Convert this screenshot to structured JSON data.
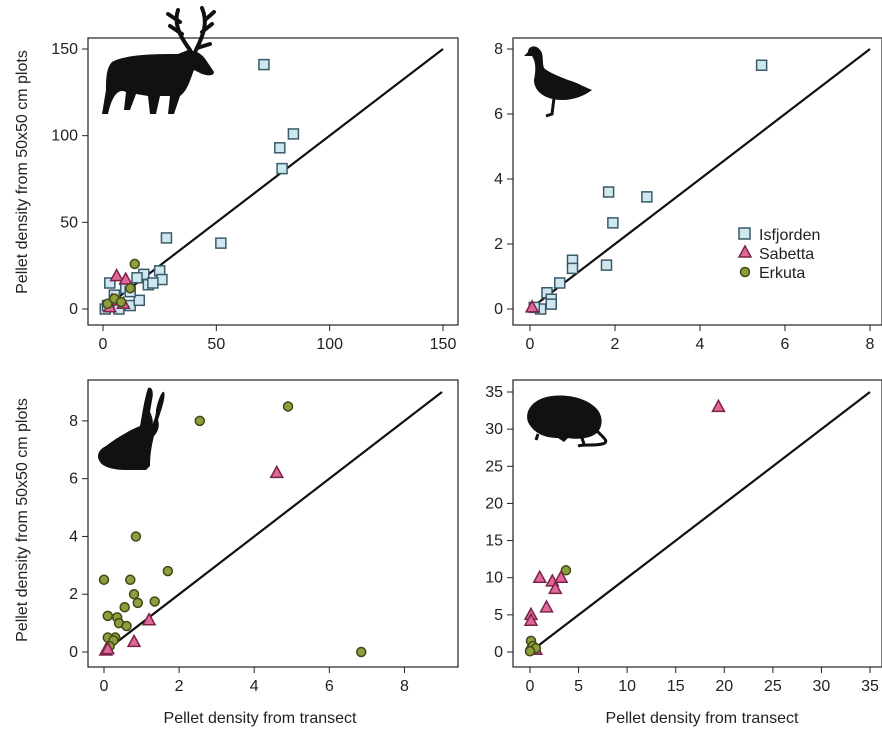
{
  "figure": {
    "ylabel": "Pellet density from 50x50 cm plots",
    "xlabel": "Pellet density from transect"
  },
  "legend": [
    {
      "label": "Isfjorden",
      "shape": "square",
      "fill": "#cfe7ee",
      "stroke": "#3a5a6a"
    },
    {
      "label": "Sabetta",
      "shape": "triangle",
      "fill": "#e0679a",
      "stroke": "#7a2448"
    },
    {
      "label": "Erkuta",
      "shape": "circle",
      "fill": "#8f9d3f",
      "stroke": "#3f4a17"
    }
  ],
  "colors": {
    "Isfjorden": {
      "fill": "#cfe7ee",
      "stroke": "#3a5a6a"
    },
    "Sabetta": {
      "fill": "#e0679a",
      "stroke": "#7a2448"
    },
    "Erkuta": {
      "fill": "#8f9d3f",
      "stroke": "#3f4a17"
    },
    "line": "#111111",
    "silhouette": "#111111"
  },
  "chart_data": [
    {
      "type": "scatter",
      "panel": "top-left",
      "icon": "reindeer-icon",
      "xlim": [
        0,
        150
      ],
      "ylim": [
        0,
        150
      ],
      "xticks": [
        0,
        50,
        100,
        150
      ],
      "yticks": [
        0,
        50,
        100,
        150
      ],
      "reference_line": [
        [
          0,
          0
        ],
        [
          150,
          150
        ]
      ],
      "series": [
        {
          "name": "Isfjorden",
          "points": [
            [
              71,
              141
            ],
            [
              84,
              101
            ],
            [
              78,
              93
            ],
            [
              79,
              81
            ],
            [
              28,
              41
            ],
            [
              52,
              38
            ],
            [
              1,
              0
            ],
            [
              2,
              2
            ],
            [
              3,
              15
            ],
            [
              7,
              0
            ],
            [
              12,
              2
            ],
            [
              5,
              8
            ],
            [
              10,
              12
            ],
            [
              16,
              5
            ],
            [
              18,
              20
            ],
            [
              20,
              14
            ],
            [
              25,
              22
            ],
            [
              26,
              17
            ],
            [
              15,
              18
            ],
            [
              22,
              15
            ],
            [
              12,
              10
            ]
          ]
        },
        {
          "name": "Sabetta",
          "points": [
            [
              6,
              19
            ],
            [
              10,
              17
            ],
            [
              4,
              5
            ],
            [
              9,
              3
            ],
            [
              3,
              1
            ]
          ]
        },
        {
          "name": "Erkuta",
          "points": [
            [
              14,
              26
            ],
            [
              2,
              3
            ],
            [
              5,
              6
            ],
            [
              8,
              4
            ],
            [
              12,
              12
            ]
          ]
        }
      ]
    },
    {
      "type": "scatter",
      "panel": "top-right",
      "icon": "goose-icon",
      "xlim": [
        0,
        8
      ],
      "ylim": [
        0,
        8
      ],
      "xticks": [
        0,
        2,
        4,
        6,
        8
      ],
      "yticks": [
        0,
        2,
        4,
        6,
        8
      ],
      "reference_line": [
        [
          0,
          0
        ],
        [
          8,
          8
        ]
      ],
      "series": [
        {
          "name": "Isfjorden",
          "points": [
            [
              5.45,
              7.5
            ],
            [
              1.85,
              3.6
            ],
            [
              2.75,
              3.45
            ],
            [
              1.95,
              2.65
            ],
            [
              1.0,
              1.5
            ],
            [
              1.0,
              1.25
            ],
            [
              1.8,
              1.35
            ],
            [
              0.7,
              0.8
            ],
            [
              0.4,
              0.5
            ],
            [
              0.5,
              0.3
            ],
            [
              0.5,
              0.15
            ],
            [
              0.25,
              0.0
            ],
            [
              0.1,
              0.05
            ]
          ]
        },
        {
          "name": "Sabetta",
          "points": [
            [
              0.05,
              0.05
            ]
          ]
        }
      ]
    },
    {
      "type": "scatter",
      "panel": "bottom-left",
      "icon": "hare-icon",
      "xlim": [
        0,
        9
      ],
      "ylim": [
        0,
        9
      ],
      "xticks": [
        0,
        2,
        4,
        6,
        8
      ],
      "yticks": [
        0,
        2,
        4,
        6,
        8
      ],
      "reference_line": [
        [
          0,
          0
        ],
        [
          9,
          9
        ]
      ],
      "series": [
        {
          "name": "Erkuta",
          "points": [
            [
              2.55,
              8.0
            ],
            [
              4.9,
              8.5
            ],
            [
              0.85,
              4.0
            ],
            [
              0.0,
              2.5
            ],
            [
              0.7,
              2.5
            ],
            [
              1.7,
              2.8
            ],
            [
              0.8,
              2.0
            ],
            [
              0.9,
              1.7
            ],
            [
              1.35,
              1.75
            ],
            [
              0.55,
              1.55
            ],
            [
              0.1,
              1.25
            ],
            [
              0.35,
              1.2
            ],
            [
              0.4,
              1.0
            ],
            [
              0.6,
              0.9
            ],
            [
              0.3,
              0.5
            ],
            [
              0.1,
              0.5
            ],
            [
              0.25,
              0.4
            ],
            [
              0.15,
              0.2
            ],
            [
              6.85,
              0.0
            ]
          ]
        },
        {
          "name": "Sabetta",
          "points": [
            [
              4.6,
              6.2
            ],
            [
              1.2,
              1.1
            ],
            [
              0.8,
              0.35
            ],
            [
              0.05,
              0.05
            ],
            [
              0.1,
              0.1
            ]
          ]
        }
      ]
    },
    {
      "type": "scatter",
      "panel": "bottom-right",
      "icon": "lemming-icon",
      "xlim": [
        0,
        35
      ],
      "ylim": [
        0,
        35
      ],
      "xticks": [
        0,
        5,
        10,
        15,
        20,
        25,
        30,
        35
      ],
      "yticks": [
        0,
        5,
        10,
        15,
        20,
        25,
        30,
        35
      ],
      "reference_line": [
        [
          0,
          0
        ],
        [
          35,
          35
        ]
      ],
      "series": [
        {
          "name": "Sabetta",
          "points": [
            [
              19.4,
              33.0
            ],
            [
              1.0,
              10.0
            ],
            [
              2.3,
              9.5
            ],
            [
              3.2,
              10.0
            ],
            [
              2.6,
              8.5
            ],
            [
              1.7,
              6.0
            ],
            [
              0.1,
              5.0
            ],
            [
              0.1,
              4.2
            ],
            [
              0.2,
              1.0
            ],
            [
              0.6,
              0.3
            ]
          ]
        },
        {
          "name": "Erkuta",
          "points": [
            [
              3.7,
              11.0
            ],
            [
              0.1,
              1.5
            ],
            [
              0.3,
              0.8
            ],
            [
              0.6,
              0.5
            ],
            [
              0.0,
              0.1
            ]
          ]
        }
      ]
    }
  ]
}
